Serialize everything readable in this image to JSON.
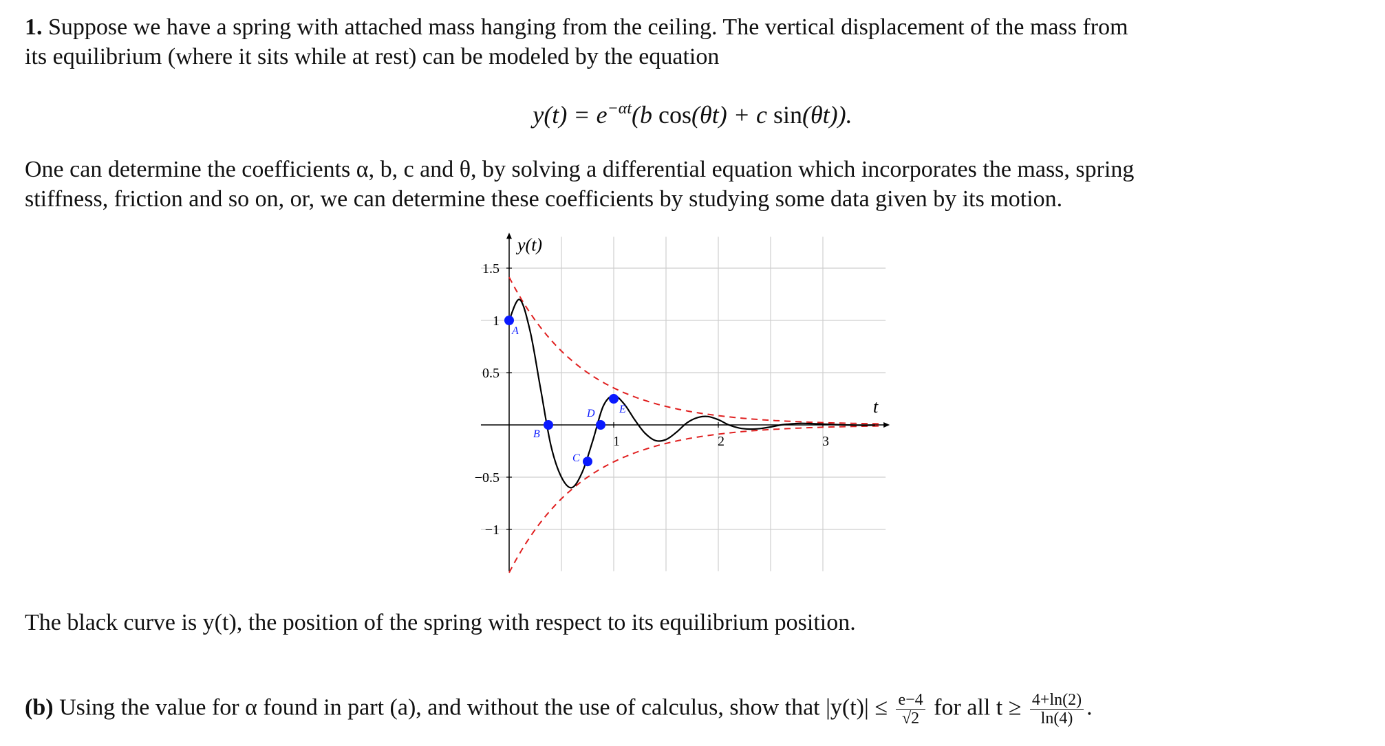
{
  "problem": {
    "number": "1.",
    "intro_line1": "Suppose we have a spring with attached mass hanging from the ceiling. The vertical displacement of the mass from",
    "intro_line2": "its equilibrium (where it sits while at rest) can be modeled by the equation",
    "eq_lhs": "y(t) = e",
    "eq_exp": "−αt",
    "eq_rhs_a": "(b ",
    "eq_cos": "cos",
    "eq_rhs_b": "(θt) + c ",
    "eq_sin": "sin",
    "eq_rhs_c": "(θt)).",
    "coef_line1": "One can determine the coefficients α, b, c and θ, by solving a differential equation which incorporates the mass, spring",
    "coef_line2": "stiffness, friction and so on, or, we can determine these coefficients by studying some data given by its motion.",
    "caption": "The black curve is y(t), the position of the spring with respect to its equilibrium position."
  },
  "part_b": {
    "label": "(b)",
    "text": "Using the value for α found in part (a), and without the use of calculus, show that |y(t)| ≤",
    "frac1_num": "e−4",
    "frac1_den": "√2",
    "mid": "for all t ≥",
    "frac2_num": "4+ln(2)",
    "frac2_den": "ln(4)",
    "end": "."
  },
  "chart_data": {
    "type": "line",
    "ylabel": "y(t)",
    "xlabel": "t",
    "xlim": [
      -0.27,
      3.6
    ],
    "ylim": [
      -1.4,
      1.8
    ],
    "xticks": [
      1,
      2,
      3
    ],
    "xtick_labels": [
      "1",
      "2",
      "3"
    ],
    "yticks": [
      -1,
      -0.5,
      0.5,
      1,
      1.5
    ],
    "ytick_labels": [
      "−1",
      "−0.5",
      "0.5",
      "1",
      "1.5"
    ],
    "grid": true,
    "curve": {
      "name": "y(t)",
      "color": "#000000",
      "x": [
        0,
        0.1,
        0.2,
        0.3,
        0.4,
        0.5,
        0.6,
        0.7,
        0.8,
        0.9,
        1.0,
        1.1,
        1.2,
        1.3,
        1.4,
        1.5,
        1.6,
        1.7,
        1.8,
        1.9,
        2.0,
        2.1,
        2.2,
        2.3,
        2.4,
        2.5,
        2.6,
        2.7,
        2.8,
        2.9,
        3.0,
        3.1,
        3.2,
        3.3,
        3.4,
        3.5
      ],
      "y": [
        1.0,
        1.2,
        0.9,
        0.35,
        -0.2,
        -0.5,
        -0.6,
        -0.45,
        -0.15,
        0.18,
        0.28,
        0.2,
        0.05,
        -0.08,
        -0.15,
        -0.14,
        -0.07,
        0.02,
        0.07,
        0.08,
        0.05,
        0.0,
        -0.03,
        -0.04,
        -0.035,
        -0.02,
        0.0,
        0.01,
        0.015,
        0.012,
        0.008,
        0.003,
        0.0,
        -0.002,
        -0.003,
        -0.002
      ]
    },
    "envelopes": [
      {
        "name": "upper-envelope",
        "color": "#e02020",
        "formula_coeff": 1.414,
        "alpha": 1.386,
        "sign": 1
      },
      {
        "name": "lower-envelope",
        "color": "#e02020",
        "formula_coeff": 1.414,
        "alpha": 1.386,
        "sign": -1
      }
    ],
    "points": [
      {
        "label": "A",
        "x": 0,
        "y": 1.0
      },
      {
        "label": "B",
        "x": 0.375,
        "y": 0
      },
      {
        "label": "C",
        "x": 0.75,
        "y": -0.35
      },
      {
        "label": "D",
        "x": 0.875,
        "y": 0
      },
      {
        "label": "E",
        "x": 1.0,
        "y": 0.25
      }
    ],
    "point_color": "#0a1aff"
  }
}
